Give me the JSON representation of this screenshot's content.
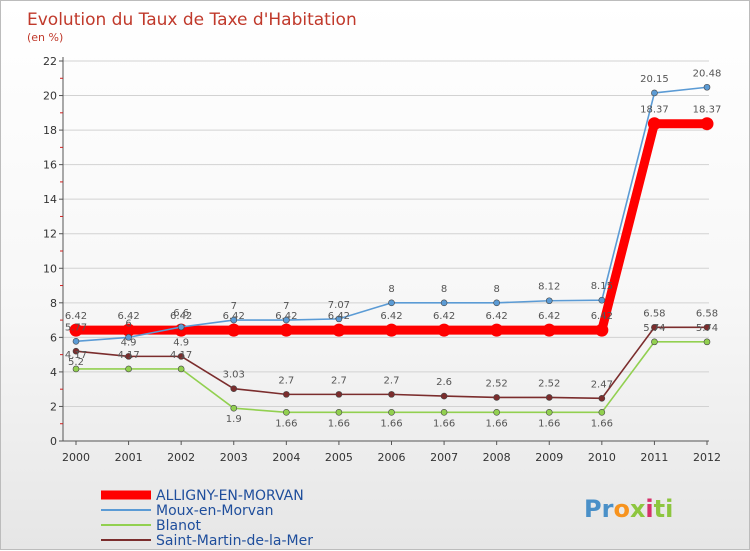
{
  "chart_data": {
    "type": "line",
    "title": "Evolution du Taux de Taxe d'Habitation",
    "subtitle": "(en %)",
    "xlabel": "",
    "ylabel": "",
    "ylim": [
      0,
      22
    ],
    "yticks": [
      0,
      2,
      4,
      6,
      8,
      10,
      12,
      14,
      16,
      18,
      20,
      22
    ],
    "x": [
      "2000",
      "2001",
      "2002",
      "2003",
      "2004",
      "2005",
      "2006",
      "2007",
      "2008",
      "2009",
      "2010",
      "2011",
      "2012"
    ],
    "series": [
      {
        "name": "ALLIGNY-EN-MORVAN",
        "color": "#ff0000",
        "values": [
          6.42,
          6.42,
          6.42,
          6.42,
          6.42,
          6.42,
          6.42,
          6.42,
          6.42,
          6.42,
          6.42,
          18.37,
          18.37
        ],
        "labels": [
          "6.42",
          "6.42",
          "6.42",
          "6.42",
          "6.42",
          "6.42",
          "6.42",
          "6.42",
          "6.42",
          "6.42",
          "6.42",
          "18.37",
          "18.37"
        ]
      },
      {
        "name": "Moux-en-Morvan",
        "color": "#5b9bd5",
        "values": [
          5.77,
          6,
          6.6,
          7,
          7,
          7.07,
          8,
          8,
          8,
          8.12,
          8.15,
          20.15,
          20.48
        ],
        "labels": [
          "5.77",
          "6",
          "6.6",
          "7",
          "7",
          "7.07",
          "8",
          "8",
          "8",
          "8.12",
          "8.15",
          "20.15",
          "20.48"
        ]
      },
      {
        "name": "Blanot",
        "color": "#92d050",
        "values": [
          4.17,
          4.17,
          4.17,
          1.9,
          1.66,
          1.66,
          1.66,
          1.66,
          1.66,
          1.66,
          1.66,
          5.74,
          5.74
        ],
        "labels": [
          "4.17",
          "4.17",
          "4.17",
          "1.9",
          "1.66",
          "1.66",
          "1.66",
          "1.66",
          "1.66",
          "1.66",
          "1.66",
          "5.74",
          "5.74"
        ]
      },
      {
        "name": "Saint-Martin-de-la-Mer",
        "color": "#7b2d2d",
        "values": [
          5.2,
          4.9,
          4.9,
          3.03,
          2.7,
          2.7,
          2.7,
          2.6,
          2.52,
          2.52,
          2.47,
          6.58,
          6.58
        ],
        "labels": [
          "5.2",
          "4.9",
          "4.9",
          "3.03",
          "2.7",
          "2.7",
          "2.7",
          "2.6",
          "2.52",
          "2.52",
          "2.47",
          "6.58",
          "6.58"
        ]
      }
    ],
    "legend_position": "bottom-left"
  },
  "brand": {
    "letters": [
      "P",
      "r",
      "o",
      "x",
      "i",
      "t",
      "i"
    ],
    "colors": [
      "#4a90c8",
      "#4a90c8",
      "#f7931e",
      "#8dc63f",
      "#d6306b",
      "#8dc63f",
      "#8dc63f"
    ]
  }
}
